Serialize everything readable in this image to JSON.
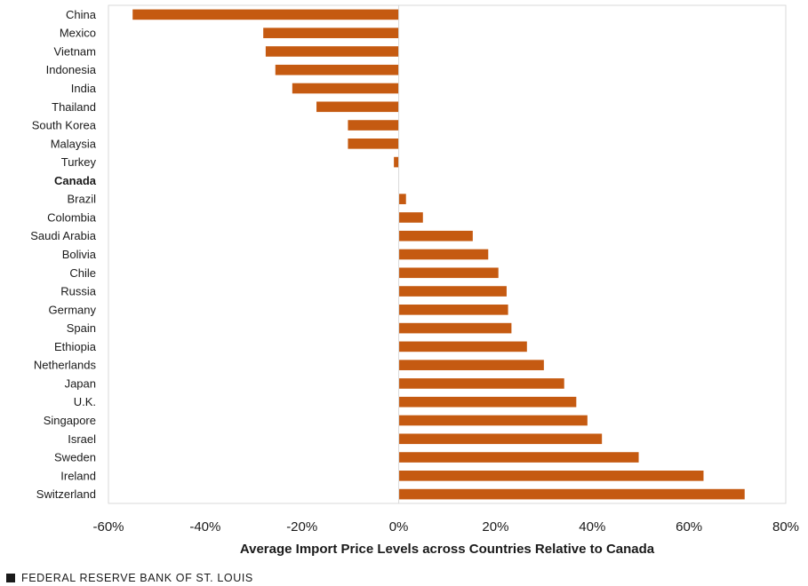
{
  "chart_data": {
    "type": "bar",
    "orientation": "horizontal",
    "categories": [
      "China",
      "Mexico",
      "Vietnam",
      "Indonesia",
      "India",
      "Thailand",
      "South Korea",
      "Malaysia",
      "Turkey",
      "Canada",
      "Brazil",
      "Colombia",
      "Saudi Arabia",
      "Bolivia",
      "Chile",
      "Russia",
      "Germany",
      "Spain",
      "Ethiopia",
      "Netherlands",
      "Japan",
      "U.K.",
      "Singapore",
      "Israel",
      "Sweden",
      "Ireland",
      "Switzerland"
    ],
    "values": [
      -55,
      -28,
      -27.5,
      -25.5,
      -22,
      -17,
      -10.5,
      -10.5,
      -1,
      0,
      1.5,
      5,
      15.3,
      18.5,
      20.6,
      22.3,
      22.6,
      23.3,
      26.5,
      30,
      34.2,
      36.7,
      39,
      42,
      49.6,
      63,
      71.5
    ],
    "highlight": "Canada",
    "xlim": [
      -60,
      80
    ],
    "xticks": [
      -60,
      -40,
      -20,
      0,
      20,
      40,
      60,
      80
    ],
    "xtick_labels": [
      "-60%",
      "-40%",
      "-20%",
      "0%",
      "20%",
      "40%",
      "60%",
      "80%"
    ],
    "xlabel": "Average Import Price Levels across Countries Relative to Canada",
    "ylabel": "",
    "title": "",
    "grid": false,
    "bar_color": "#c55a11",
    "axis_color": "#d9d9d9"
  },
  "footer": {
    "source": "FEDERAL RESERVE BANK OF ST. LOUIS"
  }
}
